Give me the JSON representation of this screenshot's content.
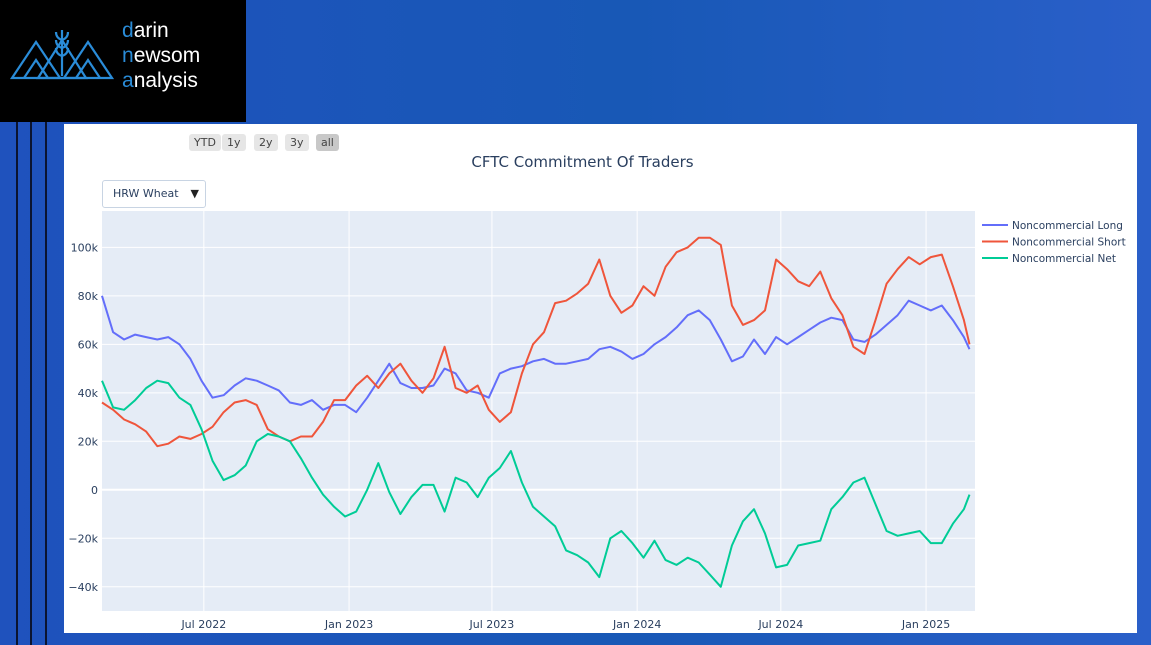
{
  "brand": {
    "line1_first": "d",
    "line1_rest": "arin",
    "line2_first": "n",
    "line2_rest": "ewsom",
    "line3_first": "a",
    "line3_rest": "nalysis"
  },
  "range_buttons": [
    "YTD",
    "1y",
    "2y",
    "3y",
    "all"
  ],
  "active_range": "all",
  "dropdown": {
    "selected": "HRW Wheat"
  },
  "colors": {
    "long": "#636efa",
    "short": "#ef553b",
    "net": "#00cc96",
    "plot_bg": "#e5ecf6"
  },
  "chart_data": {
    "type": "line",
    "title": "CFTC Commitment Of Traders",
    "xlabel": "",
    "ylabel": "",
    "x_range": [
      "2022-02-22",
      "2025-03-04"
    ],
    "ylim": [
      -50000,
      115000
    ],
    "y_ticks": [
      {
        "value": 100000,
        "label": "100k"
      },
      {
        "value": 80000,
        "label": "80k"
      },
      {
        "value": 60000,
        "label": "60k"
      },
      {
        "value": 40000,
        "label": "40k"
      },
      {
        "value": 20000,
        "label": "20k"
      },
      {
        "value": 0,
        "label": "0"
      },
      {
        "value": -20000,
        "label": "−20k"
      },
      {
        "value": -40000,
        "label": "−40k"
      }
    ],
    "x_ticks": [
      {
        "date": "2022-07-01",
        "label": "Jul 2022"
      },
      {
        "date": "2023-01-01",
        "label": "Jan 2023"
      },
      {
        "date": "2023-07-01",
        "label": "Jul 2023"
      },
      {
        "date": "2024-01-01",
        "label": "Jan 2024"
      },
      {
        "date": "2024-07-01",
        "label": "Jul 2024"
      },
      {
        "date": "2025-01-01",
        "label": "Jan 2025"
      }
    ],
    "legend_position": "right",
    "grid": true,
    "series": [
      {
        "name": "Noncommercial Long",
        "points": [
          [
            "2022-02-22",
            80000
          ],
          [
            "2022-03-08",
            65000
          ],
          [
            "2022-03-22",
            62000
          ],
          [
            "2022-04-05",
            64000
          ],
          [
            "2022-04-19",
            63000
          ],
          [
            "2022-05-03",
            62000
          ],
          [
            "2022-05-17",
            63000
          ],
          [
            "2022-05-31",
            60000
          ],
          [
            "2022-06-14",
            54000
          ],
          [
            "2022-06-28",
            45000
          ],
          [
            "2022-07-12",
            38000
          ],
          [
            "2022-07-26",
            39000
          ],
          [
            "2022-08-09",
            43000
          ],
          [
            "2022-08-23",
            46000
          ],
          [
            "2022-09-06",
            45000
          ],
          [
            "2022-09-20",
            43000
          ],
          [
            "2022-10-04",
            41000
          ],
          [
            "2022-10-18",
            36000
          ],
          [
            "2022-11-01",
            35000
          ],
          [
            "2022-11-15",
            37000
          ],
          [
            "2022-11-29",
            33000
          ],
          [
            "2022-12-13",
            35000
          ],
          [
            "2022-12-27",
            35000
          ],
          [
            "2023-01-10",
            32000
          ],
          [
            "2023-01-24",
            38000
          ],
          [
            "2023-02-07",
            45000
          ],
          [
            "2023-02-21",
            52000
          ],
          [
            "2023-03-07",
            44000
          ],
          [
            "2023-03-21",
            42000
          ],
          [
            "2023-04-04",
            42000
          ],
          [
            "2023-04-18",
            43000
          ],
          [
            "2023-05-02",
            50000
          ],
          [
            "2023-05-16",
            48000
          ],
          [
            "2023-05-30",
            41000
          ],
          [
            "2023-06-13",
            40000
          ],
          [
            "2023-06-27",
            38000
          ],
          [
            "2023-07-11",
            48000
          ],
          [
            "2023-07-25",
            50000
          ],
          [
            "2023-08-08",
            51000
          ],
          [
            "2023-08-22",
            53000
          ],
          [
            "2023-09-05",
            54000
          ],
          [
            "2023-09-19",
            52000
          ],
          [
            "2023-10-03",
            52000
          ],
          [
            "2023-10-17",
            53000
          ],
          [
            "2023-10-31",
            54000
          ],
          [
            "2023-11-14",
            58000
          ],
          [
            "2023-11-28",
            59000
          ],
          [
            "2023-12-12",
            57000
          ],
          [
            "2023-12-26",
            54000
          ],
          [
            "2024-01-09",
            56000
          ],
          [
            "2024-01-23",
            60000
          ],
          [
            "2024-02-06",
            63000
          ],
          [
            "2024-02-20",
            67000
          ],
          [
            "2024-03-05",
            72000
          ],
          [
            "2024-03-19",
            74000
          ],
          [
            "2024-04-02",
            70000
          ],
          [
            "2024-04-16",
            62000
          ],
          [
            "2024-04-30",
            53000
          ],
          [
            "2024-05-14",
            55000
          ],
          [
            "2024-05-28",
            62000
          ],
          [
            "2024-06-11",
            56000
          ],
          [
            "2024-06-25",
            63000
          ],
          [
            "2024-07-09",
            60000
          ],
          [
            "2024-07-23",
            63000
          ],
          [
            "2024-08-06",
            66000
          ],
          [
            "2024-08-20",
            69000
          ],
          [
            "2024-09-03",
            71000
          ],
          [
            "2024-09-17",
            70000
          ],
          [
            "2024-10-01",
            62000
          ],
          [
            "2024-10-15",
            61000
          ],
          [
            "2024-10-29",
            64000
          ],
          [
            "2024-11-12",
            68000
          ],
          [
            "2024-11-26",
            72000
          ],
          [
            "2024-12-10",
            78000
          ],
          [
            "2024-12-24",
            76000
          ],
          [
            "2025-01-07",
            74000
          ],
          [
            "2025-01-21",
            76000
          ],
          [
            "2025-02-04",
            70000
          ],
          [
            "2025-02-18",
            63000
          ],
          [
            "2025-02-25",
            58000
          ]
        ]
      },
      {
        "name": "Noncommercial Short",
        "points": [
          [
            "2022-02-22",
            36000
          ],
          [
            "2022-03-08",
            33000
          ],
          [
            "2022-03-22",
            29000
          ],
          [
            "2022-04-05",
            27000
          ],
          [
            "2022-04-19",
            24000
          ],
          [
            "2022-05-03",
            18000
          ],
          [
            "2022-05-17",
            19000
          ],
          [
            "2022-05-31",
            22000
          ],
          [
            "2022-06-14",
            21000
          ],
          [
            "2022-06-28",
            23000
          ],
          [
            "2022-07-12",
            26000
          ],
          [
            "2022-07-26",
            32000
          ],
          [
            "2022-08-09",
            36000
          ],
          [
            "2022-08-23",
            37000
          ],
          [
            "2022-09-06",
            35000
          ],
          [
            "2022-09-20",
            25000
          ],
          [
            "2022-10-04",
            22000
          ],
          [
            "2022-10-18",
            20000
          ],
          [
            "2022-11-01",
            22000
          ],
          [
            "2022-11-15",
            22000
          ],
          [
            "2022-11-29",
            28000
          ],
          [
            "2022-12-13",
            37000
          ],
          [
            "2022-12-27",
            37000
          ],
          [
            "2023-01-10",
            43000
          ],
          [
            "2023-01-24",
            47000
          ],
          [
            "2023-02-07",
            42000
          ],
          [
            "2023-02-21",
            48000
          ],
          [
            "2023-03-07",
            52000
          ],
          [
            "2023-03-21",
            45000
          ],
          [
            "2023-04-04",
            40000
          ],
          [
            "2023-04-18",
            46000
          ],
          [
            "2023-05-02",
            59000
          ],
          [
            "2023-05-16",
            42000
          ],
          [
            "2023-05-30",
            40000
          ],
          [
            "2023-06-13",
            43000
          ],
          [
            "2023-06-27",
            33000
          ],
          [
            "2023-07-11",
            28000
          ],
          [
            "2023-07-25",
            32000
          ],
          [
            "2023-08-08",
            48000
          ],
          [
            "2023-08-22",
            60000
          ],
          [
            "2023-09-05",
            65000
          ],
          [
            "2023-09-19",
            77000
          ],
          [
            "2023-10-03",
            78000
          ],
          [
            "2023-10-17",
            81000
          ],
          [
            "2023-10-31",
            85000
          ],
          [
            "2023-11-14",
            95000
          ],
          [
            "2023-11-28",
            80000
          ],
          [
            "2023-12-12",
            73000
          ],
          [
            "2023-12-26",
            76000
          ],
          [
            "2024-01-09",
            84000
          ],
          [
            "2024-01-23",
            80000
          ],
          [
            "2024-02-06",
            92000
          ],
          [
            "2024-02-20",
            98000
          ],
          [
            "2024-03-05",
            100000
          ],
          [
            "2024-03-19",
            104000
          ],
          [
            "2024-04-02",
            104000
          ],
          [
            "2024-04-16",
            101000
          ],
          [
            "2024-04-30",
            76000
          ],
          [
            "2024-05-14",
            68000
          ],
          [
            "2024-05-28",
            70000
          ],
          [
            "2024-06-11",
            74000
          ],
          [
            "2024-06-25",
            95000
          ],
          [
            "2024-07-09",
            91000
          ],
          [
            "2024-07-23",
            86000
          ],
          [
            "2024-08-06",
            84000
          ],
          [
            "2024-08-20",
            90000
          ],
          [
            "2024-09-03",
            79000
          ],
          [
            "2024-09-17",
            72000
          ],
          [
            "2024-10-01",
            59000
          ],
          [
            "2024-10-15",
            56000
          ],
          [
            "2024-10-29",
            70000
          ],
          [
            "2024-11-12",
            85000
          ],
          [
            "2024-11-26",
            91000
          ],
          [
            "2024-12-10",
            96000
          ],
          [
            "2024-12-24",
            93000
          ],
          [
            "2025-01-07",
            96000
          ],
          [
            "2025-01-21",
            97000
          ],
          [
            "2025-02-04",
            84000
          ],
          [
            "2025-02-18",
            70000
          ],
          [
            "2025-02-25",
            60000
          ]
        ]
      },
      {
        "name": "Noncommercial Net",
        "points": [
          [
            "2022-02-22",
            45000
          ],
          [
            "2022-03-08",
            34000
          ],
          [
            "2022-03-22",
            33000
          ],
          [
            "2022-04-05",
            37000
          ],
          [
            "2022-04-19",
            42000
          ],
          [
            "2022-05-03",
            45000
          ],
          [
            "2022-05-17",
            44000
          ],
          [
            "2022-05-31",
            38000
          ],
          [
            "2022-06-14",
            35000
          ],
          [
            "2022-06-28",
            25000
          ],
          [
            "2022-07-12",
            12000
          ],
          [
            "2022-07-26",
            4000
          ],
          [
            "2022-08-09",
            6000
          ],
          [
            "2022-08-23",
            10000
          ],
          [
            "2022-09-06",
            20000
          ],
          [
            "2022-09-20",
            23000
          ],
          [
            "2022-10-04",
            22000
          ],
          [
            "2022-10-18",
            20000
          ],
          [
            "2022-11-01",
            13000
          ],
          [
            "2022-11-15",
            5000
          ],
          [
            "2022-11-29",
            -2000
          ],
          [
            "2022-12-13",
            -7000
          ],
          [
            "2022-12-27",
            -11000
          ],
          [
            "2023-01-10",
            -9000
          ],
          [
            "2023-01-24",
            0
          ],
          [
            "2023-02-07",
            11000
          ],
          [
            "2023-02-21",
            -1000
          ],
          [
            "2023-03-07",
            -10000
          ],
          [
            "2023-03-21",
            -3000
          ],
          [
            "2023-04-04",
            2000
          ],
          [
            "2023-04-18",
            2000
          ],
          [
            "2023-05-02",
            -9000
          ],
          [
            "2023-05-16",
            5000
          ],
          [
            "2023-05-30",
            3000
          ],
          [
            "2023-06-13",
            -3000
          ],
          [
            "2023-06-27",
            5000
          ],
          [
            "2023-07-11",
            9000
          ],
          [
            "2023-07-25",
            16000
          ],
          [
            "2023-08-08",
            3000
          ],
          [
            "2023-08-22",
            -7000
          ],
          [
            "2023-09-05",
            -11000
          ],
          [
            "2023-09-19",
            -15000
          ],
          [
            "2023-10-03",
            -25000
          ],
          [
            "2023-10-17",
            -27000
          ],
          [
            "2023-10-31",
            -30000
          ],
          [
            "2023-11-14",
            -36000
          ],
          [
            "2023-11-28",
            -20000
          ],
          [
            "2023-12-12",
            -17000
          ],
          [
            "2023-12-26",
            -22000
          ],
          [
            "2024-01-09",
            -28000
          ],
          [
            "2024-01-23",
            -21000
          ],
          [
            "2024-02-06",
            -29000
          ],
          [
            "2024-02-20",
            -31000
          ],
          [
            "2024-03-05",
            -28000
          ],
          [
            "2024-03-19",
            -30000
          ],
          [
            "2024-04-02",
            -35000
          ],
          [
            "2024-04-16",
            -40000
          ],
          [
            "2024-04-30",
            -23000
          ],
          [
            "2024-05-14",
            -13000
          ],
          [
            "2024-05-28",
            -8000
          ],
          [
            "2024-06-11",
            -18000
          ],
          [
            "2024-06-25",
            -32000
          ],
          [
            "2024-07-09",
            -31000
          ],
          [
            "2024-07-23",
            -23000
          ],
          [
            "2024-08-06",
            -22000
          ],
          [
            "2024-08-20",
            -21000
          ],
          [
            "2024-09-03",
            -8000
          ],
          [
            "2024-09-17",
            -3000
          ],
          [
            "2024-10-01",
            3000
          ],
          [
            "2024-10-15",
            5000
          ],
          [
            "2024-10-29",
            -6000
          ],
          [
            "2024-11-12",
            -17000
          ],
          [
            "2024-11-26",
            -19000
          ],
          [
            "2024-12-10",
            -18000
          ],
          [
            "2024-12-24",
            -17000
          ],
          [
            "2025-01-07",
            -22000
          ],
          [
            "2025-01-21",
            -22000
          ],
          [
            "2025-02-04",
            -14000
          ],
          [
            "2025-02-18",
            -8000
          ],
          [
            "2025-02-25",
            -2000
          ]
        ]
      }
    ]
  }
}
